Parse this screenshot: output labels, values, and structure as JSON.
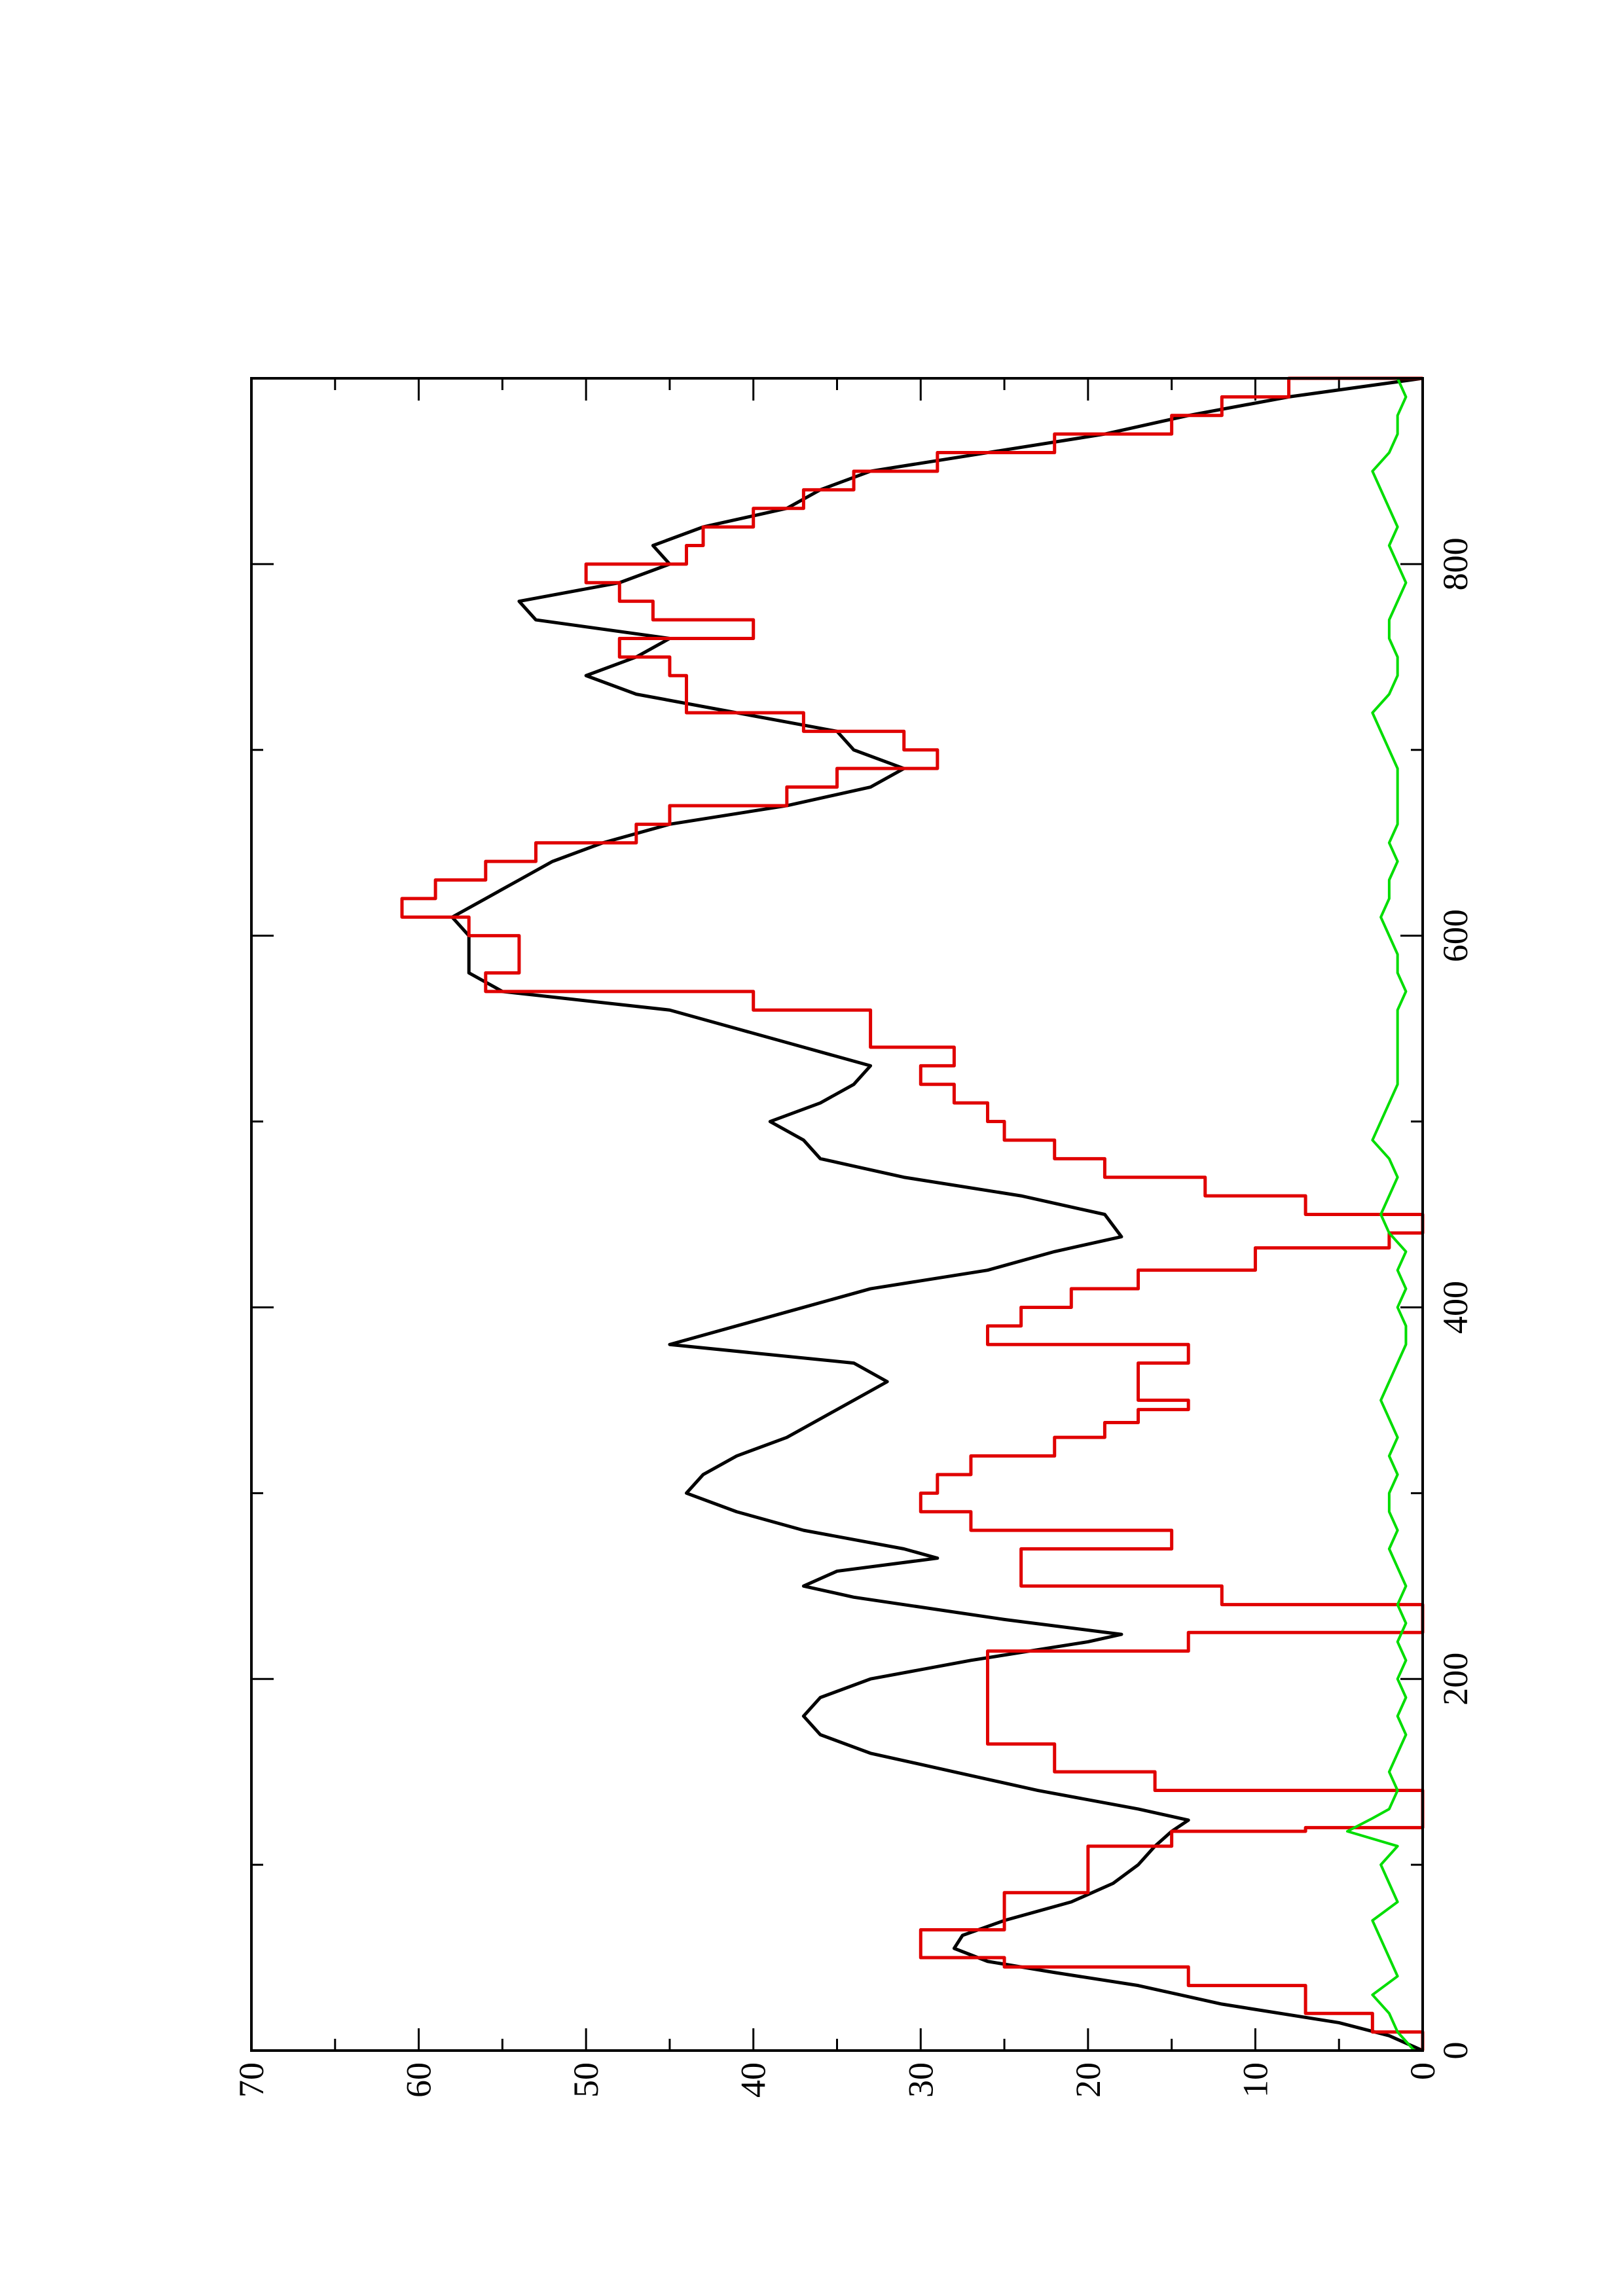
{
  "chart_data": {
    "type": "line",
    "orientation": "rotated 90° counter-clockwise (x axis runs bottom-to-top along the right side)",
    "title": "",
    "xlabel": "",
    "ylabel": "",
    "xlim": [
      0,
      900
    ],
    "ylim": [
      0,
      70
    ],
    "x_ticks": [
      0,
      200,
      400,
      600,
      800
    ],
    "x_minor_ticks": [
      100,
      300,
      500,
      700
    ],
    "y_ticks": [
      0,
      10,
      20,
      30,
      40,
      50,
      60,
      70
    ],
    "y_minor_ticks": [
      5,
      15,
      25,
      35,
      45,
      55,
      65
    ],
    "grid": false,
    "legend": "none",
    "series": [
      {
        "color": "#000000",
        "style": "line",
        "points": [
          [
            0,
            0
          ],
          [
            8,
            2
          ],
          [
            15,
            5
          ],
          [
            25,
            12
          ],
          [
            35,
            17
          ],
          [
            42,
            22
          ],
          [
            48,
            26
          ],
          [
            55,
            28
          ],
          [
            62,
            27.5
          ],
          [
            70,
            25
          ],
          [
            80,
            21
          ],
          [
            90,
            18.5
          ],
          [
            100,
            17
          ],
          [
            110,
            16
          ],
          [
            118,
            15
          ],
          [
            124,
            14
          ],
          [
            130,
            17
          ],
          [
            140,
            23
          ],
          [
            150,
            28
          ],
          [
            160,
            33
          ],
          [
            170,
            36
          ],
          [
            180,
            37
          ],
          [
            190,
            36
          ],
          [
            200,
            33
          ],
          [
            210,
            27
          ],
          [
            220,
            20
          ],
          [
            224,
            18
          ],
          [
            232,
            25
          ],
          [
            244,
            34
          ],
          [
            250,
            37
          ],
          [
            258,
            35
          ],
          [
            265,
            29
          ],
          [
            270,
            31
          ],
          [
            280,
            37
          ],
          [
            290,
            41
          ],
          [
            300,
            44
          ],
          [
            310,
            43
          ],
          [
            320,
            41
          ],
          [
            330,
            38
          ],
          [
            340,
            36
          ],
          [
            350,
            34
          ],
          [
            360,
            32
          ],
          [
            370,
            34
          ],
          [
            380,
            45
          ],
          [
            390,
            41
          ],
          [
            400,
            37
          ],
          [
            410,
            33
          ],
          [
            420,
            26
          ],
          [
            430,
            22
          ],
          [
            438,
            18
          ],
          [
            450,
            19
          ],
          [
            460,
            24
          ],
          [
            470,
            31
          ],
          [
            480,
            36
          ],
          [
            490,
            37
          ],
          [
            500,
            39
          ],
          [
            510,
            36
          ],
          [
            520,
            34
          ],
          [
            530,
            33
          ],
          [
            540,
            37
          ],
          [
            550,
            41
          ],
          [
            560,
            45
          ],
          [
            570,
            55
          ],
          [
            580,
            57
          ],
          [
            590,
            57
          ],
          [
            600,
            57
          ],
          [
            610,
            58
          ],
          [
            620,
            56
          ],
          [
            630,
            54
          ],
          [
            640,
            52
          ],
          [
            650,
            49
          ],
          [
            660,
            45
          ],
          [
            670,
            38
          ],
          [
            680,
            33
          ],
          [
            690,
            31
          ],
          [
            700,
            34
          ],
          [
            710,
            35
          ],
          [
            720,
            41
          ],
          [
            730,
            47
          ],
          [
            740,
            50
          ],
          [
            750,
            47
          ],
          [
            760,
            45
          ],
          [
            770,
            53
          ],
          [
            780,
            54
          ],
          [
            790,
            48
          ],
          [
            800,
            45
          ],
          [
            810,
            46
          ],
          [
            820,
            43
          ],
          [
            830,
            38
          ],
          [
            840,
            36
          ],
          [
            850,
            33
          ],
          [
            860,
            26
          ],
          [
            870,
            19
          ],
          [
            880,
            14
          ],
          [
            890,
            8
          ],
          [
            900,
            0
          ]
        ]
      },
      {
        "color": "#e00000",
        "style": "step",
        "points": [
          [
            0,
            0
          ],
          [
            10,
            3
          ],
          [
            20,
            7
          ],
          [
            35,
            14
          ],
          [
            45,
            25
          ],
          [
            50,
            30
          ],
          [
            60,
            30
          ],
          [
            65,
            25
          ],
          [
            75,
            25
          ],
          [
            85,
            20
          ],
          [
            100,
            20
          ],
          [
            110,
            15
          ],
          [
            118,
            7
          ],
          [
            120,
            0
          ],
          [
            128,
            0
          ],
          [
            140,
            16
          ],
          [
            150,
            22
          ],
          [
            165,
            26
          ],
          [
            180,
            26
          ],
          [
            200,
            26
          ],
          [
            215,
            14
          ],
          [
            225,
            0
          ],
          [
            230,
            0
          ],
          [
            240,
            12
          ],
          [
            250,
            24
          ],
          [
            260,
            24
          ],
          [
            270,
            15
          ],
          [
            280,
            27
          ],
          [
            290,
            30
          ],
          [
            300,
            29
          ],
          [
            310,
            27
          ],
          [
            320,
            22
          ],
          [
            330,
            19
          ],
          [
            338,
            17
          ],
          [
            345,
            14
          ],
          [
            350,
            17
          ],
          [
            360,
            17
          ],
          [
            370,
            14
          ],
          [
            380,
            26
          ],
          [
            390,
            24
          ],
          [
            400,
            21
          ],
          [
            410,
            17
          ],
          [
            420,
            10
          ],
          [
            432,
            2
          ],
          [
            440,
            0
          ],
          [
            450,
            7
          ],
          [
            460,
            13
          ],
          [
            470,
            19
          ],
          [
            480,
            22
          ],
          [
            490,
            25
          ],
          [
            500,
            26
          ],
          [
            510,
            28
          ],
          [
            520,
            30
          ],
          [
            530,
            28
          ],
          [
            540,
            33
          ],
          [
            560,
            40
          ],
          [
            570,
            56
          ],
          [
            580,
            54
          ],
          [
            590,
            54
          ],
          [
            600,
            57
          ],
          [
            610,
            61
          ],
          [
            620,
            59
          ],
          [
            630,
            56
          ],
          [
            640,
            53
          ],
          [
            650,
            47
          ],
          [
            660,
            45
          ],
          [
            670,
            38
          ],
          [
            680,
            35
          ],
          [
            690,
            29
          ],
          [
            700,
            31
          ],
          [
            710,
            37
          ],
          [
            720,
            44
          ],
          [
            740,
            45
          ],
          [
            750,
            48
          ],
          [
            760,
            40
          ],
          [
            770,
            46
          ],
          [
            780,
            48
          ],
          [
            790,
            50
          ],
          [
            800,
            44
          ],
          [
            810,
            43
          ],
          [
            820,
            40
          ],
          [
            830,
            37
          ],
          [
            840,
            34
          ],
          [
            850,
            29
          ],
          [
            860,
            22
          ],
          [
            870,
            15
          ],
          [
            880,
            12
          ],
          [
            890,
            8
          ],
          [
            900,
            0
          ]
        ]
      },
      {
        "color": "#00dd00",
        "style": "noise",
        "points": [
          [
            0,
            0.5
          ],
          [
            10,
            1.5
          ],
          [
            20,
            2
          ],
          [
            30,
            3
          ],
          [
            40,
            1.5
          ],
          [
            50,
            2
          ],
          [
            60,
            2.5
          ],
          [
            70,
            3
          ],
          [
            80,
            1.5
          ],
          [
            90,
            2
          ],
          [
            100,
            2.5
          ],
          [
            110,
            1.5
          ],
          [
            118,
            4.5
          ],
          [
            125,
            3
          ],
          [
            130,
            2
          ],
          [
            140,
            1.5
          ],
          [
            150,
            2
          ],
          [
            160,
            1.5
          ],
          [
            170,
            1
          ],
          [
            180,
            1.5
          ],
          [
            190,
            1
          ],
          [
            200,
            1.5
          ],
          [
            210,
            1
          ],
          [
            220,
            1.5
          ],
          [
            230,
            1
          ],
          [
            240,
            1.5
          ],
          [
            250,
            1
          ],
          [
            260,
            1.5
          ],
          [
            270,
            2
          ],
          [
            280,
            1.5
          ],
          [
            290,
            2
          ],
          [
            300,
            2
          ],
          [
            310,
            1.5
          ],
          [
            320,
            2
          ],
          [
            330,
            1.5
          ],
          [
            340,
            2
          ],
          [
            350,
            2.5
          ],
          [
            360,
            2
          ],
          [
            370,
            1.5
          ],
          [
            380,
            1
          ],
          [
            390,
            1
          ],
          [
            400,
            1.5
          ],
          [
            410,
            1
          ],
          [
            420,
            1.5
          ],
          [
            430,
            1
          ],
          [
            440,
            2
          ],
          [
            450,
            2.5
          ],
          [
            460,
            2
          ],
          [
            470,
            1.5
          ],
          [
            480,
            2
          ],
          [
            490,
            3
          ],
          [
            500,
            2.5
          ],
          [
            510,
            2
          ],
          [
            520,
            1.5
          ],
          [
            530,
            1.5
          ],
          [
            540,
            1.5
          ],
          [
            550,
            1.5
          ],
          [
            560,
            1.5
          ],
          [
            570,
            1
          ],
          [
            580,
            1.5
          ],
          [
            590,
            1.5
          ],
          [
            600,
            2
          ],
          [
            610,
            2.5
          ],
          [
            620,
            2
          ],
          [
            630,
            2
          ],
          [
            640,
            1.5
          ],
          [
            650,
            2
          ],
          [
            660,
            1.5
          ],
          [
            670,
            1.5
          ],
          [
            680,
            1.5
          ],
          [
            690,
            1.5
          ],
          [
            700,
            2
          ],
          [
            710,
            2.5
          ],
          [
            720,
            3
          ],
          [
            730,
            2
          ],
          [
            740,
            1.5
          ],
          [
            750,
            1.5
          ],
          [
            760,
            2
          ],
          [
            770,
            2
          ],
          [
            780,
            1.5
          ],
          [
            790,
            1
          ],
          [
            800,
            1.5
          ],
          [
            810,
            2
          ],
          [
            820,
            1.5
          ],
          [
            830,
            2
          ],
          [
            840,
            2.5
          ],
          [
            850,
            3
          ],
          [
            860,
            2
          ],
          [
            870,
            1.5
          ],
          [
            880,
            1.5
          ],
          [
            890,
            1
          ],
          [
            900,
            1.5
          ]
        ]
      }
    ]
  }
}
